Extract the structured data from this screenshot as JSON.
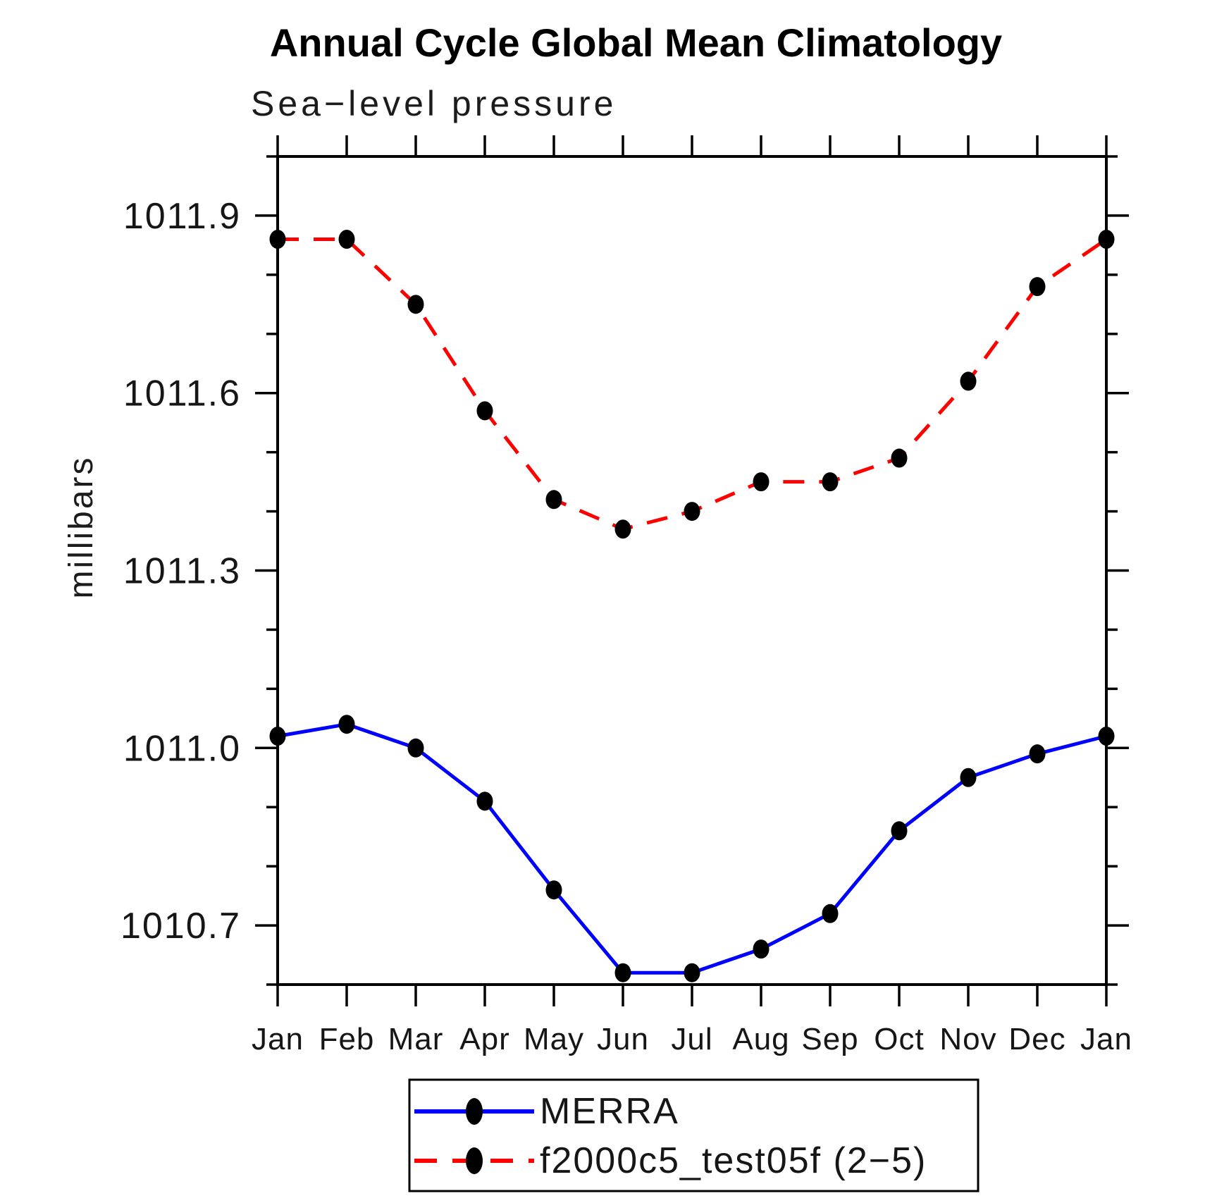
{
  "page": {
    "background": "#ffffff"
  },
  "chart_data": {
    "type": "line",
    "title": "Annual Cycle Global Mean Climatology",
    "subtitle": "Sea−level pressure",
    "xlabel": "",
    "ylabel": "millibars",
    "categories": [
      "Jan",
      "Feb",
      "Mar",
      "Apr",
      "May",
      "Jun",
      "Jul",
      "Aug",
      "Sep",
      "Oct",
      "Nov",
      "Dec",
      "Jan"
    ],
    "ylim": [
      1010.6,
      1012.0
    ],
    "ytick_minor_step": 0.1,
    "ytick_major_labels": [
      "1010.7",
      "1011.0",
      "1011.3",
      "1011.6",
      "1011.9"
    ],
    "grid": false,
    "frame_color": "#000000",
    "marker_color": "#000000",
    "legend_position": "bottom-center",
    "series": [
      {
        "name": "MERRA",
        "color": "#0000ff",
        "style": "solid",
        "marker": "filled-circle",
        "values": [
          1011.02,
          1011.04,
          1011.0,
          1010.91,
          1010.76,
          1010.62,
          1010.62,
          1010.66,
          1010.72,
          1010.86,
          1010.95,
          1010.99,
          1011.02
        ]
      },
      {
        "name": "f2000c5_test05f (2−5)",
        "color": "#ff0000",
        "style": "dashed",
        "marker": "filled-circle",
        "values": [
          1011.86,
          1011.86,
          1011.75,
          1011.57,
          1011.42,
          1011.37,
          1011.4,
          1011.45,
          1011.45,
          1011.49,
          1011.62,
          1011.78,
          1011.86
        ]
      }
    ]
  }
}
